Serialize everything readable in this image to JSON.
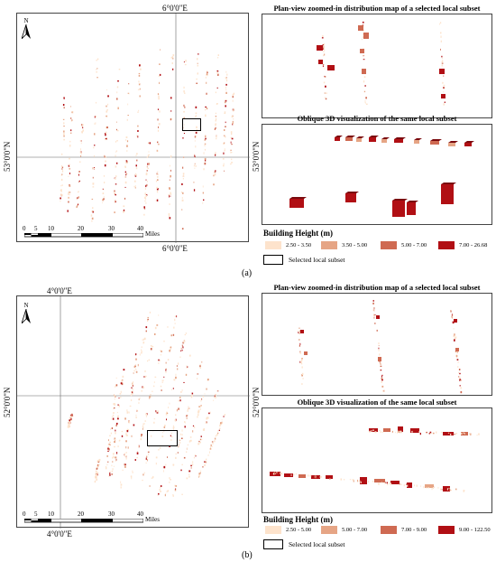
{
  "panels": [
    {
      "top_coord": "6°0'0\"E",
      "bottom_coord": "6°0'0\"E",
      "left_coord": "53°0'0\"N",
      "right_coord": "53°0'0\"N",
      "north": "N",
      "scale_ticks": [
        "0",
        "5",
        "10",
        "20",
        "30",
        "40"
      ],
      "scale_unit": "Miles",
      "plan_title": "Plan-view zoomed-in distribution map of a selected local subset",
      "oblique_title": "Oblique 3D visualization of the same local subset",
      "legend_title": "Building Height (m)",
      "legend": [
        {
          "label": "2.50 - 3.50",
          "color": "#fde3cc"
        },
        {
          "label": "3.50 - 5.00",
          "color": "#e6a585"
        },
        {
          "label": "5.00 - 7.00",
          "color": "#cf6a52"
        },
        {
          "label": "7.00 - 26.68",
          "color": "#b10f14"
        }
      ],
      "selected_label": "Selected local subset",
      "caption": "(a)"
    },
    {
      "top_coord": "4°0'0\"E",
      "bottom_coord": "4°0'0\"E",
      "left_coord": "52°0'0\"N",
      "right_coord": "52°0'0\"N",
      "north": "N",
      "scale_ticks": [
        "0",
        "5",
        "10",
        "20",
        "30",
        "40"
      ],
      "scale_unit": "Miles",
      "plan_title": "Plan-view zoomed-in distribution map of a selected local subset",
      "oblique_title": "Oblique 3D visualization of the same local subset",
      "legend_title": "Building Height (m)",
      "legend": [
        {
          "label": "2.50 - 5.00",
          "color": "#fde3cc"
        },
        {
          "label": "5.00 - 7.00",
          "color": "#e6a585"
        },
        {
          "label": "7.00 - 9.00",
          "color": "#cf6a52"
        },
        {
          "label": "9.00 - 122.50",
          "color": "#b10f14"
        }
      ],
      "selected_label": "Selected local subset",
      "caption": "(b)"
    }
  ]
}
